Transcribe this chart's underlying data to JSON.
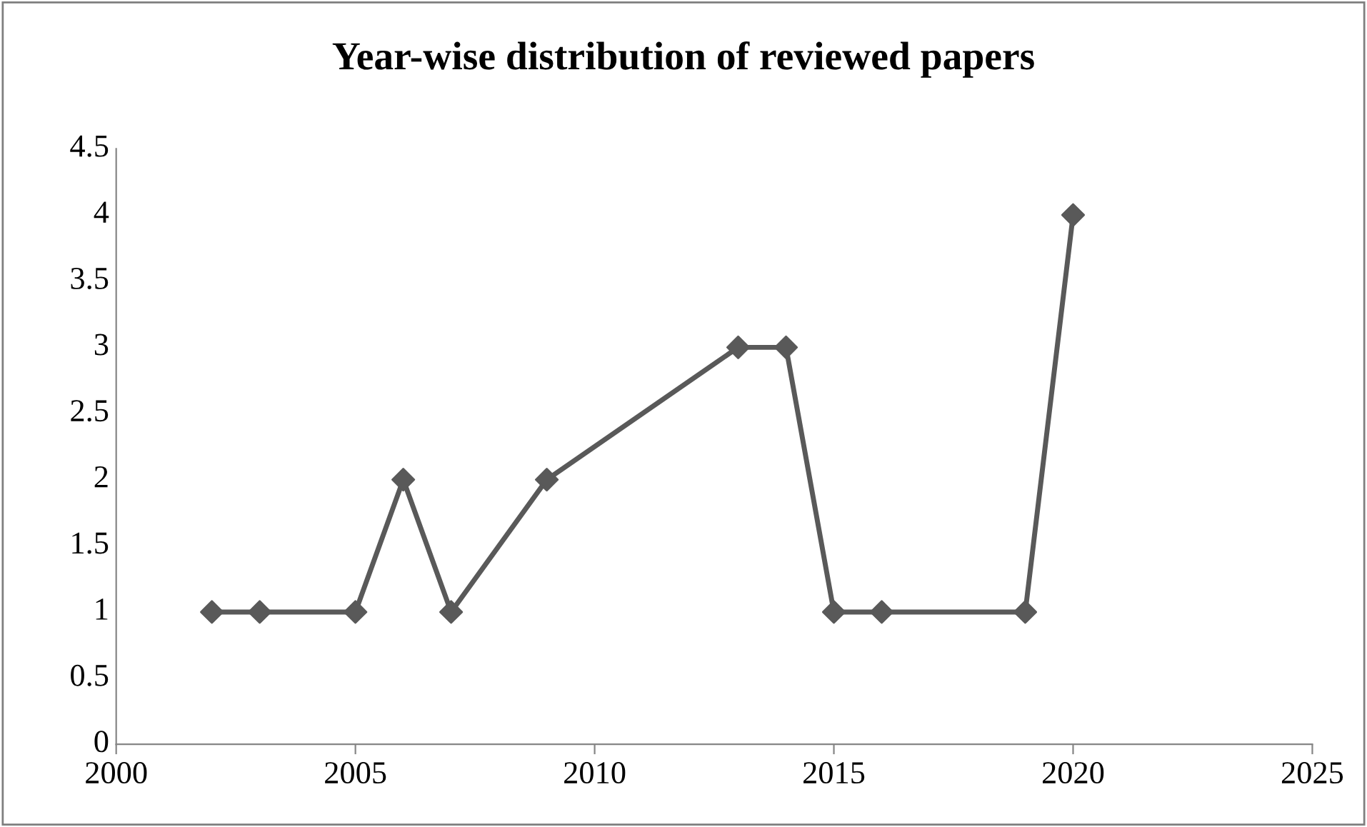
{
  "chart_data": {
    "type": "line",
    "title": "Year-wise distribution of reviewed papers",
    "x": [
      2002,
      2003,
      2005,
      2006,
      2007,
      2009,
      2013,
      2014,
      2015,
      2016,
      2019,
      2020
    ],
    "series": [
      {
        "color": "#595959",
        "values": [
          1,
          1,
          1,
          2,
          1,
          2,
          3,
          3,
          1,
          1,
          1,
          4
        ]
      }
    ],
    "xlim": [
      2000,
      2025
    ],
    "xticks": [
      2000,
      2005,
      2010,
      2015,
      2020,
      2025
    ],
    "ylim": [
      0,
      4.5
    ],
    "yticks": [
      0,
      0.5,
      1,
      1.5,
      2,
      2.5,
      3,
      3.5,
      4,
      4.5
    ],
    "grid": false,
    "marker": "diamond",
    "line_style": "solid"
  }
}
